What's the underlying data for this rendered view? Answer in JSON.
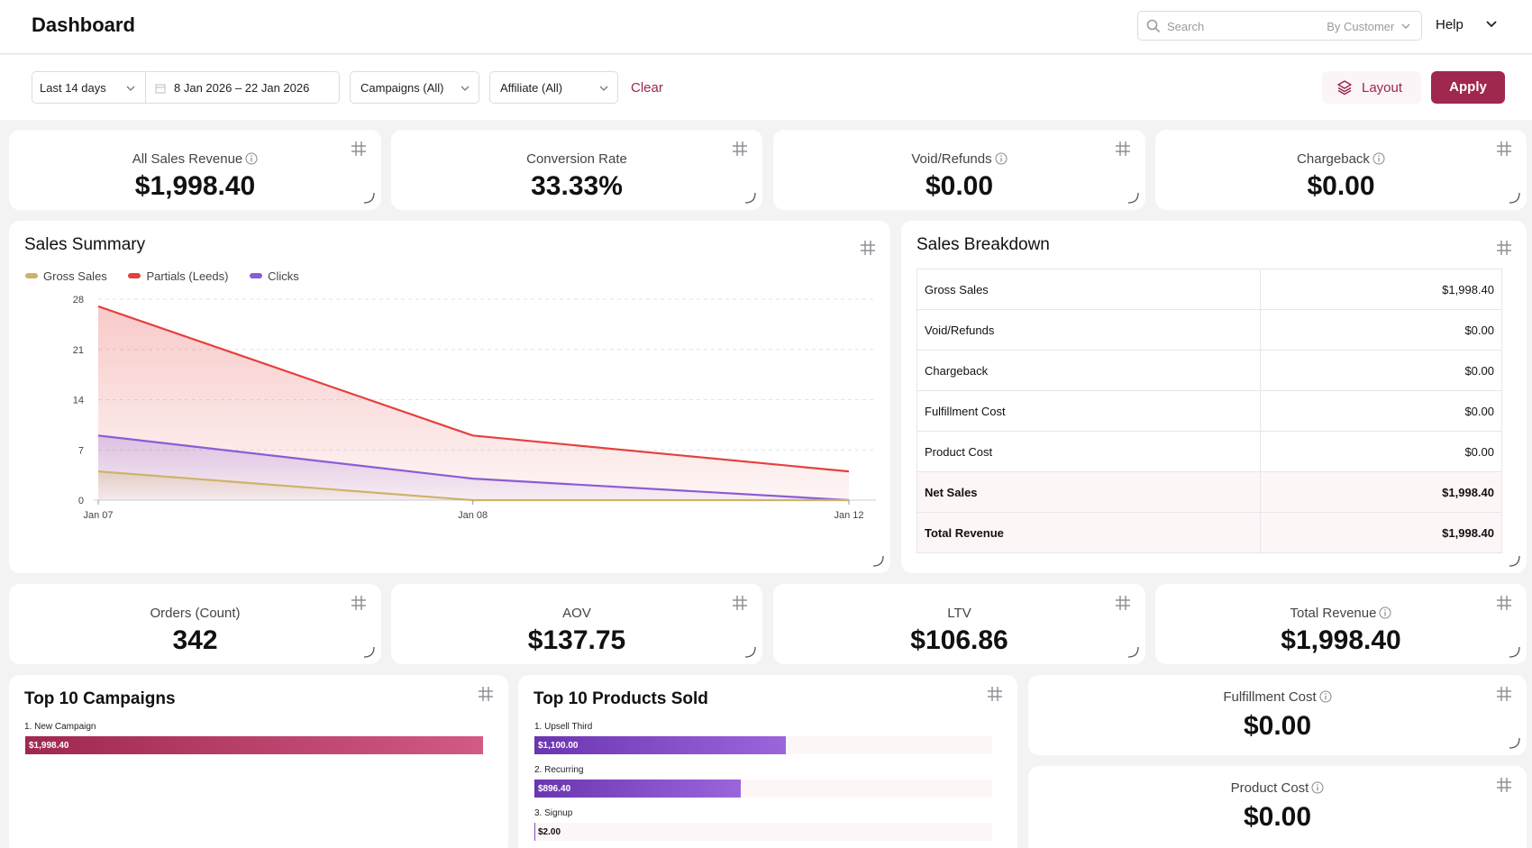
{
  "header": {
    "title": "Dashboard",
    "search_placeholder": "Search",
    "search_scope": "By Customer",
    "help": "Help"
  },
  "filters": {
    "range": "Last 14 days",
    "dates": "8 Jan 2026 – 22 Jan 2026",
    "campaigns": "Campaigns (All)",
    "affiliate": "Affiliate (All)",
    "clear": "Clear",
    "layout": "Layout",
    "apply": "Apply"
  },
  "metrics_top": [
    {
      "title": "All Sales Revenue",
      "value": "$1,998.40",
      "info": true
    },
    {
      "title": "Conversion Rate",
      "value": "33.33%",
      "info": false
    },
    {
      "title": "Void/Refunds",
      "value": "$0.00",
      "info": true
    },
    {
      "title": "Chargeback",
      "value": "$0.00",
      "info": true
    }
  ],
  "sales_summary": {
    "title": "Sales Summary"
  },
  "chart_data": {
    "type": "area",
    "x": [
      "Jan 07",
      "Jan 08",
      "Jan 12"
    ],
    "series": [
      {
        "name": "Gross Sales",
        "color": "#cdb36a",
        "values": [
          4,
          0,
          0
        ]
      },
      {
        "name": "Partials (Leeds)",
        "color": "#e4413d",
        "values": [
          27,
          9,
          4
        ]
      },
      {
        "name": "Clicks",
        "color": "#8b5cd6",
        "values": [
          9,
          3,
          0
        ]
      }
    ],
    "yticks": [
      28,
      21,
      14,
      7,
      0
    ],
    "ylim": [
      0,
      28
    ],
    "grid": true,
    "legend": "top-left"
  },
  "sales_breakdown": {
    "title": "Sales Breakdown",
    "rows": [
      {
        "label": "Gross Sales",
        "value": "$1,998.40"
      },
      {
        "label": "Void/Refunds",
        "value": "$0.00"
      },
      {
        "label": "Chargeback",
        "value": "$0.00"
      },
      {
        "label": "Fulfillment Cost",
        "value": "$0.00"
      },
      {
        "label": "Product Cost",
        "value": "$0.00"
      },
      {
        "label": "Net Sales",
        "value": "$1,998.40"
      },
      {
        "label": "Total Revenue",
        "value": "$1,998.40"
      }
    ]
  },
  "metrics_mid": [
    {
      "title": "Orders (Count)",
      "value": "342",
      "info": false
    },
    {
      "title": "AOV",
      "value": "$137.75",
      "info": false
    },
    {
      "title": "LTV",
      "value": "$106.86",
      "info": false
    },
    {
      "title": "Total Revenue",
      "value": "$1,998.40",
      "info": true
    }
  ],
  "top_campaigns": {
    "title": "Top 10 Campaigns",
    "items": [
      {
        "label": "1. New Campaign",
        "value": "$1,998.40",
        "fraction": 1.0
      }
    ]
  },
  "top_products": {
    "title": "Top 10 Products Sold",
    "items": [
      {
        "label": "1. Upsell Third",
        "value": "$1,100.00",
        "fraction": 0.55
      },
      {
        "label": "2. Recurring",
        "value": "$896.40",
        "fraction": 0.45
      },
      {
        "label": "3. Signup",
        "value": "$2.00",
        "fraction": 0.001
      }
    ]
  },
  "metrics_side": [
    {
      "title": "Fulfillment Cost",
      "value": "$0.00",
      "info": true
    },
    {
      "title": "Product Cost",
      "value": "$0.00",
      "info": true
    }
  ]
}
